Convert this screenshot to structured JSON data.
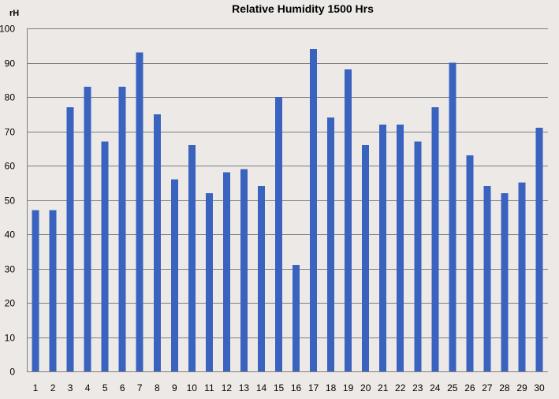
{
  "chart_data": {
    "type": "bar",
    "title": "Relative Humidity 1500 Hrs",
    "xlabel": "",
    "ylabel": "rH",
    "ylim": [
      0,
      100
    ],
    "ytick_step": 10,
    "grid": true,
    "legend": "none",
    "bar_color": "#3a63c0",
    "categories": [
      "1",
      "2",
      "3",
      "4",
      "5",
      "6",
      "7",
      "8",
      "9",
      "10",
      "11",
      "12",
      "13",
      "14",
      "15",
      "16",
      "17",
      "18",
      "19",
      "20",
      "21",
      "22",
      "23",
      "24",
      "25",
      "26",
      "27",
      "28",
      "29",
      "30"
    ],
    "values": [
      47,
      47,
      77,
      83,
      67,
      83,
      93,
      75,
      56,
      66,
      52,
      58,
      59,
      54,
      80,
      31,
      94,
      74,
      88,
      66,
      72,
      72,
      67,
      77,
      90,
      63,
      54,
      52,
      55,
      71
    ]
  }
}
